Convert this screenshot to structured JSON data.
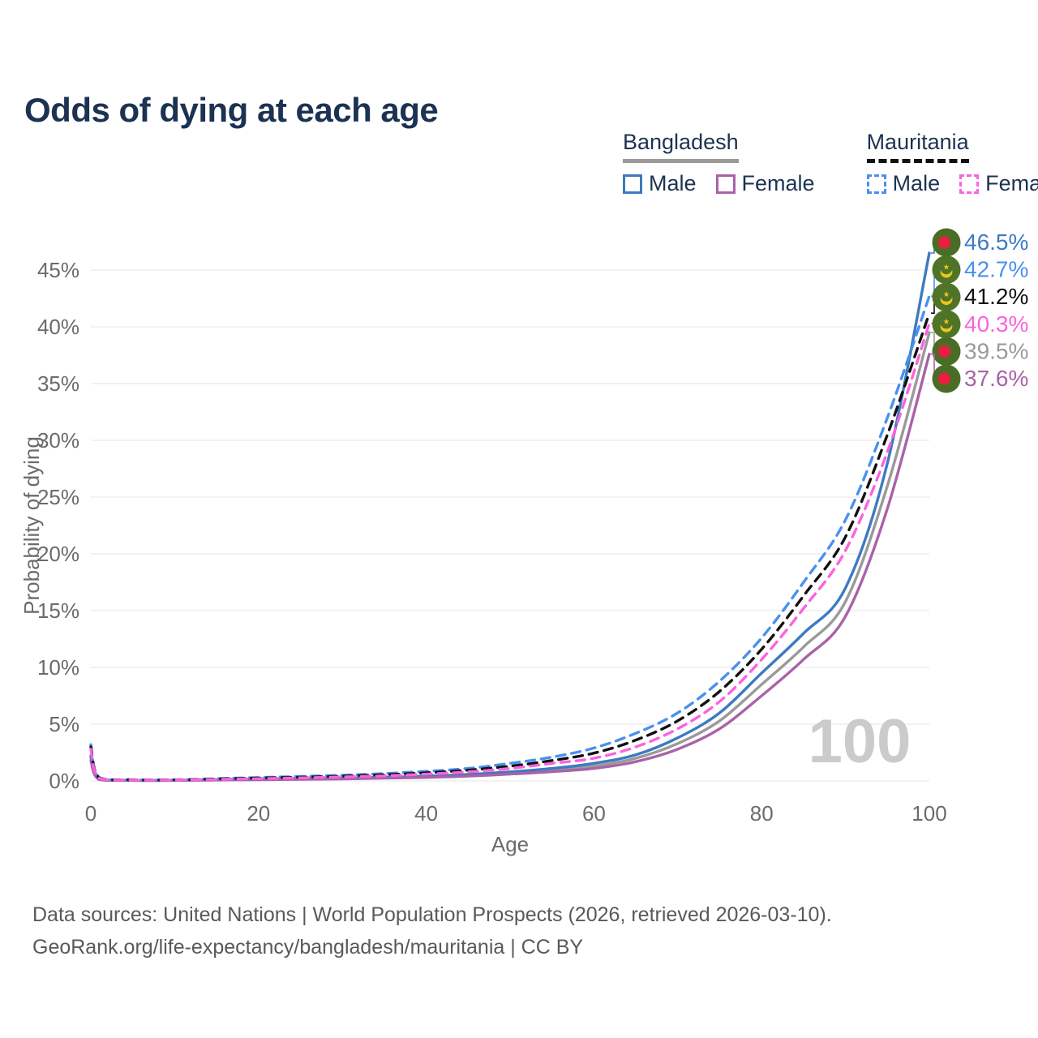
{
  "title": "Odds of dying at each age",
  "legend": {
    "groups": [
      {
        "country": "Bangladesh",
        "line_style": "solid",
        "underline_color": "#9a9a9a",
        "items": [
          {
            "label": "Male",
            "color": "#3d7ac1",
            "style": "solid"
          },
          {
            "label": "Female",
            "color": "#a962a8",
            "style": "solid"
          }
        ]
      },
      {
        "country": "Mauritania",
        "line_style": "dashed",
        "underline_color": "#111111",
        "items": [
          {
            "label": "Male",
            "color": "#4a90f0",
            "style": "dashed"
          },
          {
            "label": "Female",
            "color": "#fb63dd",
            "style": "dashed"
          }
        ]
      }
    ]
  },
  "watermark_age": "100",
  "footer": {
    "line1": "Data sources: United Nations | World Population Prospects (2026, retrieved 2026-03-10).",
    "line2": "GeoRank.org/life-expectancy/bangladesh/mauritania | CC BY"
  },
  "chart_data": {
    "type": "line",
    "title": "Odds of dying at each age",
    "xlabel": "Age",
    "ylabel": "Probability of dying",
    "xlim": [
      0,
      100
    ],
    "ylim_percent": [
      0,
      47
    ],
    "x_ticks": [
      0,
      20,
      40,
      60,
      80,
      100
    ],
    "y_ticks_percent": [
      0,
      5,
      10,
      15,
      20,
      25,
      30,
      35,
      40,
      45
    ],
    "grid": "horizontal-only",
    "gridline_color": "#e9e9e9",
    "tick_label_color": "#6b6b6b",
    "watermark_color": "#cbcbcb",
    "ages": [
      0,
      1,
      5,
      10,
      15,
      20,
      25,
      30,
      35,
      40,
      45,
      50,
      55,
      60,
      65,
      70,
      75,
      80,
      85,
      90,
      95,
      100
    ],
    "series": [
      {
        "name": "Bangladesh Total",
        "country": "Bangladesh",
        "sex": "both",
        "color": "#9a9a9a",
        "dashed": false,
        "flag": "bangladesh-flag-icon",
        "end_label": "39.5%",
        "values_percent": [
          2.0,
          0.14,
          0.05,
          0.05,
          0.09,
          0.13,
          0.17,
          0.22,
          0.28,
          0.36,
          0.5,
          0.7,
          0.95,
          1.3,
          2.0,
          3.3,
          5.3,
          8.5,
          11.8,
          15.8,
          26.0,
          39.5
        ]
      },
      {
        "name": "Bangladesh Male",
        "country": "Bangladesh",
        "sex": "male",
        "color": "#3d7ac1",
        "dashed": false,
        "flag": "bangladesh-flag-icon",
        "end_label": "46.5%",
        "values_percent": [
          2.2,
          0.15,
          0.05,
          0.06,
          0.1,
          0.15,
          0.2,
          0.25,
          0.32,
          0.42,
          0.58,
          0.8,
          1.1,
          1.55,
          2.3,
          3.8,
          6.0,
          9.5,
          13.0,
          17.0,
          28.0,
          46.5
        ]
      },
      {
        "name": "Bangladesh Female",
        "country": "Bangladesh",
        "sex": "female",
        "color": "#a962a8",
        "dashed": false,
        "flag": "bangladesh-flag-icon",
        "end_label": "37.6%",
        "values_percent": [
          1.8,
          0.12,
          0.04,
          0.05,
          0.08,
          0.11,
          0.14,
          0.18,
          0.24,
          0.31,
          0.42,
          0.6,
          0.82,
          1.1,
          1.7,
          2.8,
          4.6,
          7.5,
          10.7,
          14.5,
          24.0,
          37.6
        ]
      },
      {
        "name": "Mauritania Male",
        "country": "Mauritania",
        "sex": "male",
        "color": "#4a90f0",
        "dashed": true,
        "flag": "mauritania-flag-icon",
        "end_label": "42.7%",
        "values_percent": [
          3.2,
          0.3,
          0.1,
          0.1,
          0.2,
          0.3,
          0.4,
          0.5,
          0.65,
          0.85,
          1.1,
          1.55,
          2.1,
          2.9,
          4.2,
          6.0,
          8.8,
          12.6,
          17.5,
          23.0,
          32.0,
          42.7
        ]
      },
      {
        "name": "Mauritania Total",
        "country": "Mauritania",
        "sex": "both",
        "color": "#111111",
        "dashed": true,
        "flag": "mauritania-flag-icon",
        "end_label": "41.2%",
        "values_percent": [
          3.0,
          0.28,
          0.09,
          0.09,
          0.17,
          0.25,
          0.33,
          0.42,
          0.55,
          0.72,
          0.95,
          1.3,
          1.8,
          2.45,
          3.6,
          5.3,
          7.9,
          11.6,
          16.3,
          21.5,
          30.5,
          41.2
        ]
      },
      {
        "name": "Mauritania Female",
        "country": "Mauritania",
        "sex": "female",
        "color": "#fb63dd",
        "dashed": true,
        "flag": "mauritania-flag-icon",
        "end_label": "40.3%",
        "values_percent": [
          2.8,
          0.25,
          0.08,
          0.08,
          0.14,
          0.2,
          0.27,
          0.35,
          0.45,
          0.6,
          0.8,
          1.1,
          1.55,
          2.0,
          3.0,
          4.6,
          7.0,
          10.7,
          15.2,
          20.3,
          29.0,
          40.3
        ]
      }
    ],
    "flag_colors": {
      "bangladesh_green": "#4a6d26",
      "bangladesh_red": "#e8203d",
      "mauritania_green": "#4f7428",
      "mauritania_yellow": "#efc41f"
    }
  }
}
